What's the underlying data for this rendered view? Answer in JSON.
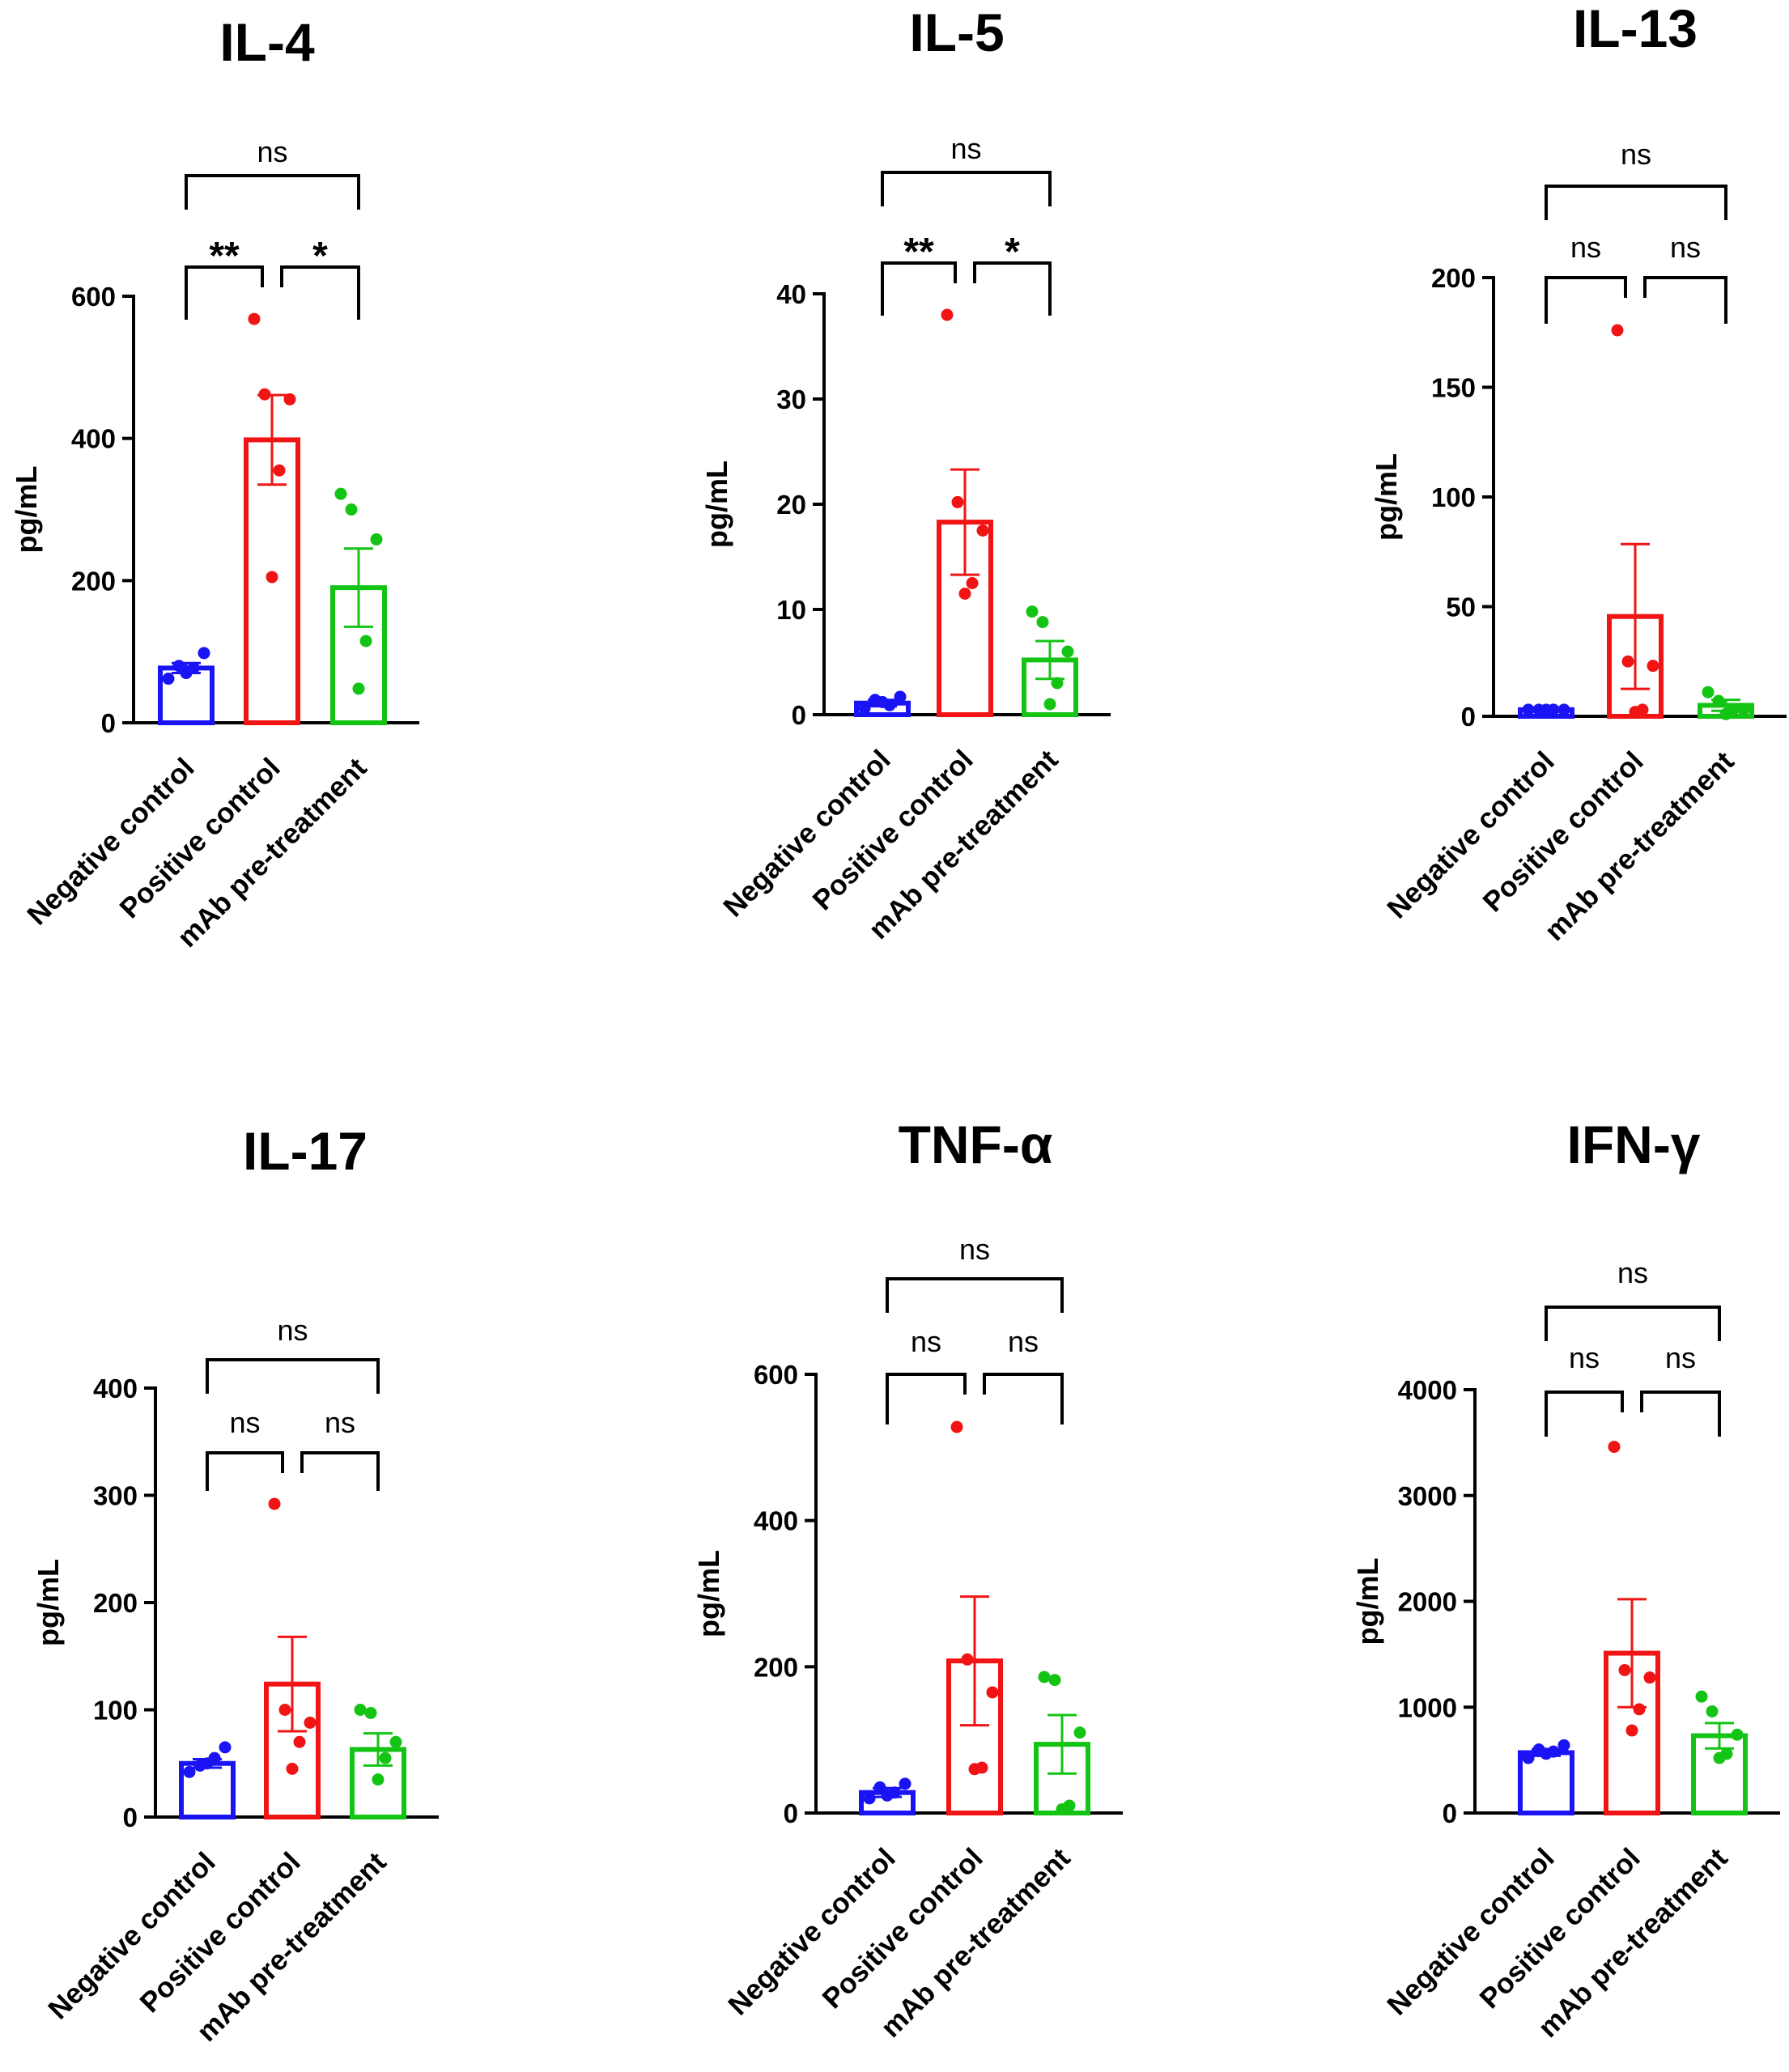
{
  "chart_data": [
    {
      "type": "bar",
      "title": "IL-4",
      "ylabel": "pg/mL",
      "ylim": [
        0,
        600
      ],
      "yticks": [
        0,
        200,
        400,
        600
      ],
      "categories": [
        "Negative control",
        "Positive control",
        "mAb pre-treatment"
      ],
      "colors": [
        "#1a14f5",
        "#f01414",
        "#14c414"
      ],
      "means": [
        77,
        398,
        190
      ],
      "sem": [
        7,
        63,
        55
      ],
      "points": [
        [
          62,
          80,
          98,
          77,
          70
        ],
        [
          568,
          462,
          455,
          355,
          205
        ],
        [
          322,
          300,
          258,
          115,
          48
        ]
      ],
      "comparisons": [
        {
          "pair": [
            0,
            1
          ],
          "label": "**"
        },
        {
          "pair": [
            1,
            2
          ],
          "label": "*"
        },
        {
          "pair": [
            0,
            2
          ],
          "label": "ns"
        }
      ]
    },
    {
      "type": "bar",
      "title": "IL-5",
      "ylabel": "pg/mL",
      "ylim": [
        0,
        40
      ],
      "yticks": [
        0,
        10,
        20,
        30,
        40
      ],
      "categories": [
        "Negative control",
        "Positive control",
        "mAb pre-treatment"
      ],
      "colors": [
        "#1a14f5",
        "#f01414",
        "#14c414"
      ],
      "means": [
        1.1,
        18.3,
        5.2
      ],
      "sem": [
        0.3,
        5.0,
        1.8
      ],
      "points": [
        [
          0.6,
          1.4,
          1.7,
          0.9,
          1.2
        ],
        [
          38.0,
          20.2,
          17.5,
          12.5,
          11.5
        ],
        [
          9.8,
          8.8,
          6.0,
          3.0,
          1.0
        ]
      ],
      "comparisons": [
        {
          "pair": [
            0,
            1
          ],
          "label": "**"
        },
        {
          "pair": [
            1,
            2
          ],
          "label": "*"
        },
        {
          "pair": [
            0,
            2
          ],
          "label": "ns"
        }
      ]
    },
    {
      "type": "bar",
      "title": "IL-13",
      "ylabel": "pg/mL",
      "ylim": [
        0,
        200
      ],
      "yticks": [
        0,
        50,
        100,
        150,
        200
      ],
      "categories": [
        "Negative control",
        "Positive control",
        "mAb pre-treatment"
      ],
      "colors": [
        "#1a14f5",
        "#f01414",
        "#14c414"
      ],
      "means": [
        3,
        45.5,
        5
      ],
      "sem": [
        0.5,
        33,
        2.5
      ],
      "points": [
        [
          3,
          3,
          3,
          3,
          3
        ],
        [
          176,
          25,
          23,
          3,
          2
        ],
        [
          11,
          7,
          3,
          3,
          1
        ]
      ],
      "comparisons": [
        {
          "pair": [
            0,
            1
          ],
          "label": "ns"
        },
        {
          "pair": [
            1,
            2
          ],
          "label": "ns"
        },
        {
          "pair": [
            0,
            2
          ],
          "label": "ns"
        }
      ]
    },
    {
      "type": "bar",
      "title": "IL-17",
      "ylabel": "pg/mL",
      "ylim": [
        0,
        400
      ],
      "yticks": [
        0,
        100,
        200,
        300,
        400
      ],
      "categories": [
        "Negative control",
        "Positive control",
        "mAb pre-treatment"
      ],
      "colors": [
        "#1a14f5",
        "#f01414",
        "#14c414"
      ],
      "means": [
        50,
        124,
        63
      ],
      "sem": [
        4,
        44,
        15
      ],
      "points": [
        [
          42,
          48,
          65,
          55,
          50
        ],
        [
          292,
          100,
          88,
          70,
          45
        ],
        [
          100,
          97,
          70,
          55,
          35
        ]
      ],
      "comparisons": [
        {
          "pair": [
            0,
            1
          ],
          "label": "ns"
        },
        {
          "pair": [
            1,
            2
          ],
          "label": "ns"
        },
        {
          "pair": [
            0,
            2
          ],
          "label": "ns"
        }
      ]
    },
    {
      "type": "bar",
      "title": "TNF-α",
      "ylabel": "pg/mL",
      "ylim": [
        0,
        600
      ],
      "yticks": [
        0,
        200,
        400,
        600
      ],
      "categories": [
        "Negative control",
        "Positive control",
        "mAb pre-treatment"
      ],
      "colors": [
        "#1a14f5",
        "#f01414",
        "#14c414"
      ],
      "means": [
        28,
        208,
        94
      ],
      "sem": [
        6,
        88,
        40
      ],
      "points": [
        [
          20,
          35,
          40,
          28,
          24
        ],
        [
          528,
          210,
          165,
          62,
          60
        ],
        [
          186,
          182,
          110,
          10,
          5
        ]
      ],
      "comparisons": [
        {
          "pair": [
            0,
            1
          ],
          "label": "ns"
        },
        {
          "pair": [
            1,
            2
          ],
          "label": "ns"
        },
        {
          "pair": [
            0,
            2
          ],
          "label": "ns"
        }
      ]
    },
    {
      "type": "bar",
      "title": "IFN-γ",
      "ylabel": "pg/mL",
      "ylim": [
        0,
        4000
      ],
      "yticks": [
        0,
        1000,
        2000,
        3000,
        4000
      ],
      "categories": [
        "Negative control",
        "Positive control",
        "mAb pre-treatment"
      ],
      "colors": [
        "#1a14f5",
        "#f01414",
        "#14c414"
      ],
      "means": [
        570,
        1510,
        730
      ],
      "sem": [
        30,
        510,
        120
      ],
      "points": [
        [
          520,
          600,
          640,
          580,
          560
        ],
        [
          3460,
          1350,
          1280,
          980,
          780
        ],
        [
          1100,
          960,
          740,
          560,
          520
        ]
      ],
      "comparisons": [
        {
          "pair": [
            0,
            1
          ],
          "label": "ns"
        },
        {
          "pair": [
            1,
            2
          ],
          "label": "ns"
        },
        {
          "pair": [
            0,
            2
          ],
          "label": "ns"
        }
      ]
    }
  ]
}
